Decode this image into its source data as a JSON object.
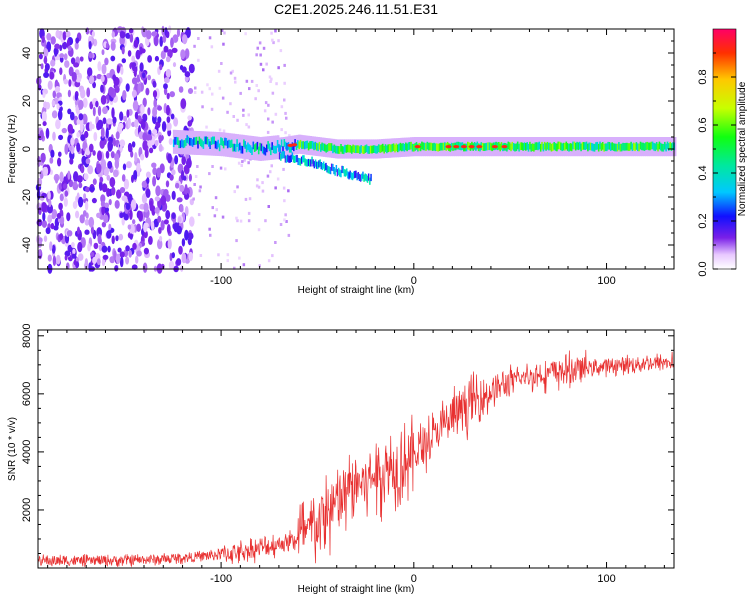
{
  "title": "C2E1.2025.246.11.51.E31",
  "chart_data": [
    {
      "type": "heatmap",
      "xlabel": "Height of straight line (km)",
      "ylabel": "Frequency (Hz)",
      "xlim": [
        -195,
        135
      ],
      "ylim": [
        -50,
        50
      ],
      "xticks": [
        -100,
        0,
        100
      ],
      "xtick_labels": [
        "-100",
        "0",
        "100"
      ],
      "yticks": [
        -40,
        -20,
        0,
        20,
        40
      ],
      "ytick_labels": [
        "-40",
        "-20",
        "0",
        "20",
        "40"
      ],
      "colorbar": {
        "label": "Normalized spectral amplitude",
        "range": [
          0,
          1
        ],
        "ticks": [
          0,
          0.2,
          0.4,
          0.6,
          0.8
        ],
        "tick_labels": [
          "0.0",
          "0.2",
          "0.4",
          "0.6",
          "0.8"
        ]
      },
      "description_series": {
        "main_band_center_hz": [
          [
            -125,
            3
          ],
          [
            -100,
            2
          ],
          [
            -80,
            0
          ],
          [
            -68,
            1
          ],
          [
            -60,
            2
          ],
          [
            -40,
            0
          ],
          [
            -20,
            0
          ],
          [
            0,
            1
          ],
          [
            20,
            1
          ],
          [
            50,
            1
          ],
          [
            100,
            1
          ],
          [
            135,
            1
          ]
        ],
        "lower_branch_hz": [
          [
            -70,
            -3
          ],
          [
            -55,
            -5
          ],
          [
            -40,
            -9
          ],
          [
            -30,
            -11
          ],
          [
            -22,
            -13
          ]
        ]
      }
    },
    {
      "type": "line",
      "xlabel": "Height of straight line (km)",
      "ylabel": "SNR (10 * v/v)",
      "xlim": [
        -195,
        135
      ],
      "ylim": [
        0,
        8200
      ],
      "xticks": [
        -100,
        0,
        100
      ],
      "xtick_labels": [
        "-100",
        "0",
        "100"
      ],
      "yticks": [
        2000,
        4000,
        6000,
        8000
      ],
      "ytick_labels": [
        "2000",
        "4000",
        "6000",
        "8000"
      ],
      "color": "#e83030",
      "x": [
        -195,
        -160,
        -130,
        -110,
        -90,
        -75,
        -60,
        -50,
        -40,
        -30,
        -20,
        -10,
        0,
        10,
        20,
        30,
        40,
        50,
        60,
        70,
        80,
        90,
        100,
        110,
        120,
        135
      ],
      "y": [
        250,
        250,
        300,
        400,
        550,
        750,
        1000,
        1500,
        2200,
        2900,
        3200,
        3500,
        3900,
        4500,
        5200,
        5700,
        6100,
        6400,
        6600,
        6700,
        6800,
        6900,
        6950,
        7000,
        7050,
        7100
      ]
    }
  ]
}
